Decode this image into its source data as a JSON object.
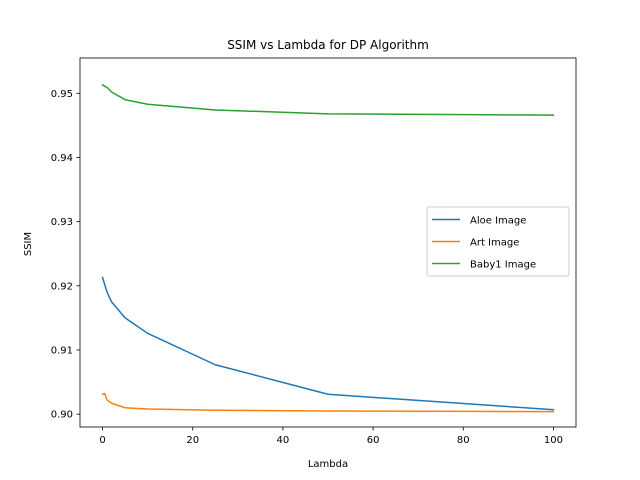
{
  "chart_data": {
    "type": "line",
    "title": "SSIM vs Lambda for DP Algorithm",
    "xlabel": "Lambda",
    "ylabel": "SSIM",
    "xlim": [
      -5,
      105
    ],
    "ylim": [
      0.898,
      0.9555
    ],
    "xticks": [
      0,
      20,
      40,
      60,
      80,
      100
    ],
    "yticks": [
      0.9,
      0.91,
      0.92,
      0.93,
      0.94,
      0.95
    ],
    "ytick_labels": [
      "0.90",
      "0.91",
      "0.92",
      "0.93",
      "0.94",
      "0.95"
    ],
    "grid": false,
    "legend_position": "center-right",
    "series": [
      {
        "name": "Aloe Image",
        "color": "#1f77b4",
        "x": [
          0,
          1,
          2,
          5,
          10,
          25,
          50,
          100
        ],
        "y": [
          0.9213,
          0.919,
          0.9175,
          0.915,
          0.9126,
          0.9077,
          0.9031,
          0.9007
        ]
      },
      {
        "name": "Art Image",
        "color": "#ff7f0e",
        "x": [
          0,
          0.5,
          1,
          2,
          5,
          10,
          25,
          50,
          100
        ],
        "y": [
          0.9031,
          0.9032,
          0.9022,
          0.9017,
          0.901,
          0.9008,
          0.9006,
          0.9005,
          0.9004
        ]
      },
      {
        "name": "Baby1 Image",
        "color": "#2ca02c",
        "x": [
          0,
          1,
          2,
          5,
          10,
          25,
          50,
          100
        ],
        "y": [
          0.9513,
          0.9509,
          0.9502,
          0.949,
          0.9483,
          0.9474,
          0.9468,
          0.9466
        ]
      }
    ]
  }
}
